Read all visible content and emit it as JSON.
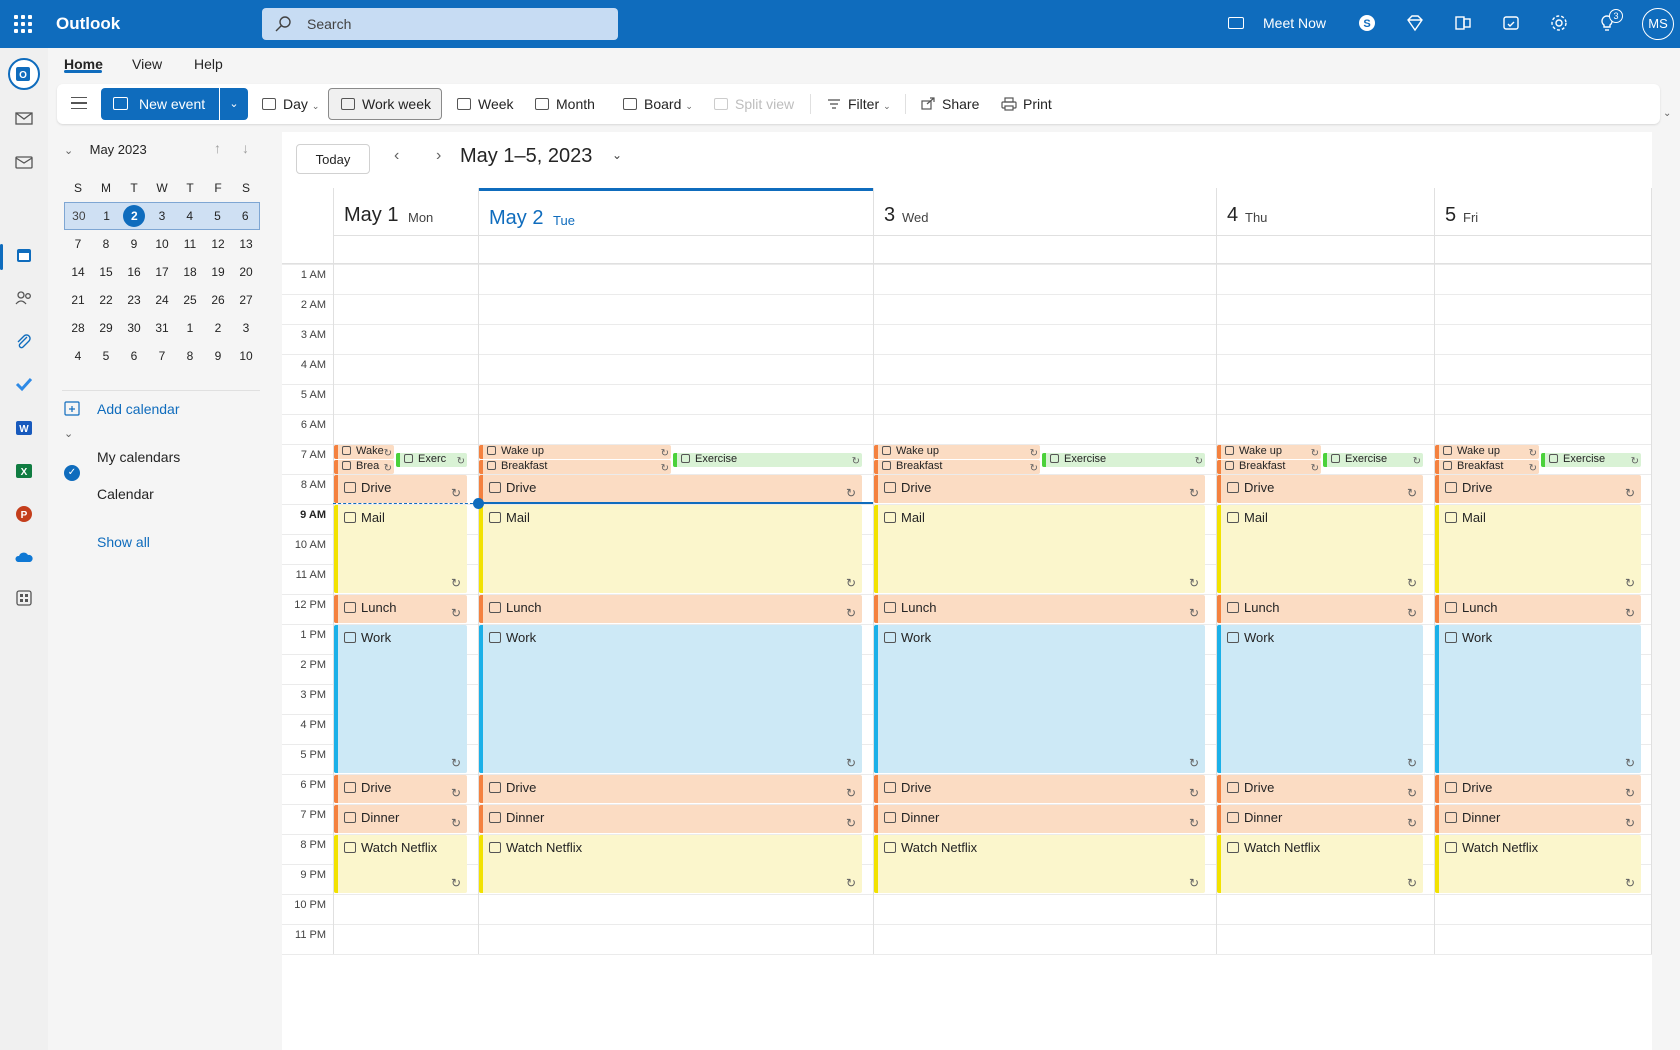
{
  "topbar": {
    "app_name": "Outlook",
    "search_placeholder": "Search",
    "meet_now": "Meet Now",
    "notification_count": "3",
    "avatar_initials": "MS"
  },
  "ribbon": {
    "tabs": [
      "Home",
      "View",
      "Help"
    ],
    "new_event": "New event",
    "day": "Day",
    "work_week": "Work week",
    "week": "Week",
    "month": "Month",
    "board": "Board",
    "split_view": "Split view",
    "filter": "Filter",
    "share": "Share",
    "print": "Print"
  },
  "mini_calendar": {
    "title": "May 2023",
    "weekdays": [
      "S",
      "M",
      "T",
      "W",
      "T",
      "F",
      "S"
    ],
    "weeks": [
      [
        "30",
        "1",
        "2",
        "3",
        "4",
        "5",
        "6"
      ],
      [
        "7",
        "8",
        "9",
        "10",
        "11",
        "12",
        "13"
      ],
      [
        "14",
        "15",
        "16",
        "17",
        "18",
        "19",
        "20"
      ],
      [
        "21",
        "22",
        "23",
        "24",
        "25",
        "26",
        "27"
      ],
      [
        "28",
        "29",
        "30",
        "31",
        "1",
        "2",
        "3"
      ],
      [
        "4",
        "5",
        "6",
        "7",
        "8",
        "9",
        "10"
      ]
    ],
    "today": "2"
  },
  "left_pane": {
    "add_calendar": "Add calendar",
    "my_calendars": "My calendars",
    "calendar": "Calendar",
    "show_all": "Show all"
  },
  "calendar_view": {
    "today_button": "Today",
    "range_title": "May 1–5, 2023",
    "days": [
      {
        "num": "May 1",
        "name": "Mon"
      },
      {
        "num": "May 2",
        "name": "Tue"
      },
      {
        "num": "3",
        "name": "Wed"
      },
      {
        "num": "4",
        "name": "Thu"
      },
      {
        "num": "5",
        "name": "Fri"
      }
    ],
    "hours": [
      "1 AM",
      "2 AM",
      "3 AM",
      "4 AM",
      "5 AM",
      "6 AM",
      "7 AM",
      "8 AM",
      "9 AM",
      "10 AM",
      "11 AM",
      "12 PM",
      "1 PM",
      "2 PM",
      "3 PM",
      "4 PM",
      "5 PM",
      "6 PM",
      "7 PM",
      "8 PM",
      "9 PM",
      "10 PM",
      "11 PM"
    ],
    "events": {
      "wake_up": "Wake up",
      "breakfast": "Breakfast",
      "exercise": "Exercise",
      "drive": "Drive",
      "mail": "Mail",
      "lunch": "Lunch",
      "work": "Work",
      "dinner": "Dinner",
      "watch_netflix": "Watch Netflix"
    },
    "truncated": {
      "wake": "Wake",
      "brea": "Brea",
      "exerc": "Exerc"
    }
  },
  "colors": {
    "accent": "#0f6cbd",
    "orange_event": "#fbdcc3",
    "yellow_event": "#fbf6cc",
    "blue_event": "#cde9f6",
    "green_event": "#d9f2d5"
  }
}
